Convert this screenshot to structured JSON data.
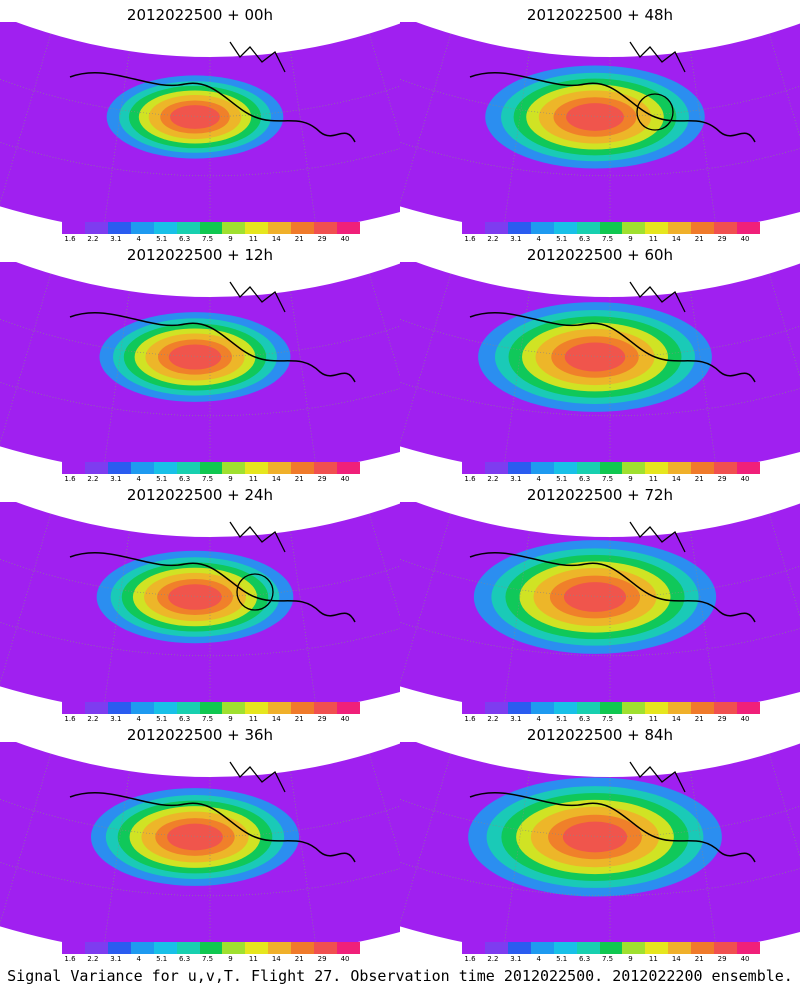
{
  "panels": [
    {
      "title": "2012022500 + 00h",
      "intensity": 0.55,
      "circle": false
    },
    {
      "title": "2012022500 + 48h",
      "intensity": 0.7,
      "circle": true
    },
    {
      "title": "2012022500 + 12h",
      "intensity": 0.6,
      "circle": false
    },
    {
      "title": "2012022500 + 60h",
      "intensity": 0.75,
      "circle": false
    },
    {
      "title": "2012022500 + 24h",
      "intensity": 0.62,
      "circle": true
    },
    {
      "title": "2012022500 + 72h",
      "intensity": 0.78,
      "circle": false
    },
    {
      "title": "2012022500 + 36h",
      "intensity": 0.66,
      "circle": false
    },
    {
      "title": "2012022500 + 84h",
      "intensity": 0.82,
      "circle": false
    }
  ],
  "colorbar": {
    "labels": [
      "1.6",
      "2.2",
      "3.1",
      "4",
      "5.1",
      "6.3",
      "7.5",
      "9",
      "11",
      "14",
      "21",
      "29",
      "40"
    ],
    "colors": [
      "#a020f0",
      "#7e3cf0",
      "#2a5cf0",
      "#1e9af0",
      "#18c0e8",
      "#18d0b0",
      "#10c850",
      "#a0e030",
      "#e6e61e",
      "#f0b02a",
      "#f07a2a",
      "#f05050",
      "#f0207a"
    ]
  },
  "footer": "Signal Variance for u,v,T. Flight 27. Observation time 2012022500. 2012022200 ensemble."
}
